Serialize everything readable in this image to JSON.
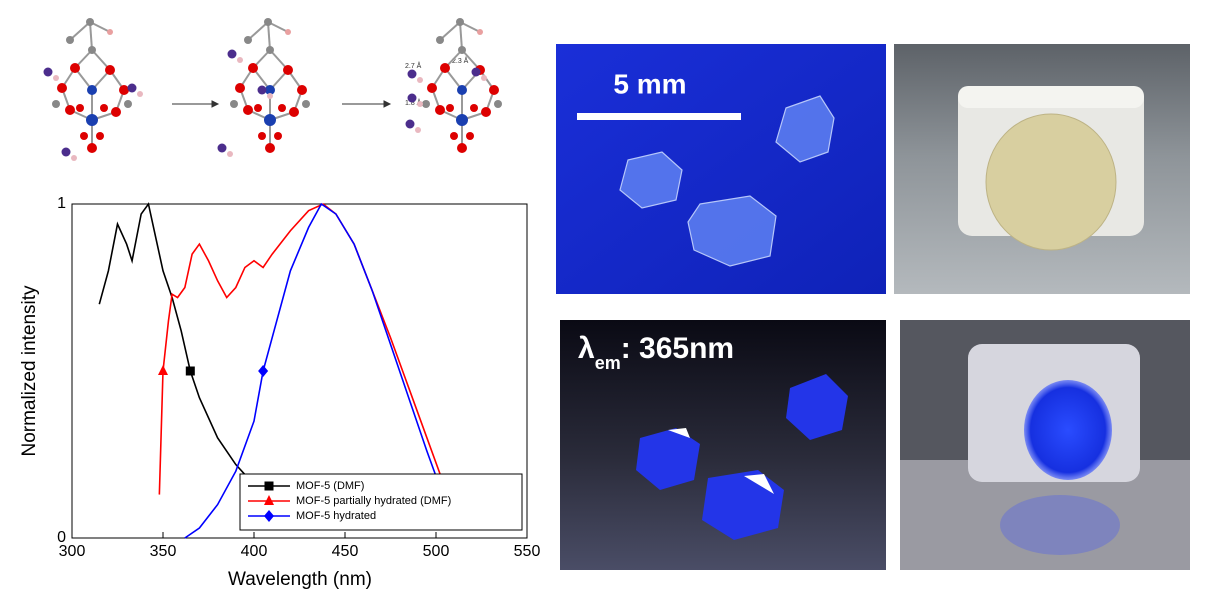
{
  "chart_data": {
    "type": "line",
    "x_label": "Wavelength (nm)",
    "y_label": "Normalized intensity",
    "xlim": [
      300,
      550
    ],
    "xticks": [
      300,
      350,
      400,
      450,
      500,
      550
    ],
    "ylim": [
      0,
      1
    ],
    "yticks": [
      0,
      1
    ],
    "legend": "lower right",
    "series": [
      {
        "name": "MOF-5 (DMF)",
        "color": "#000000",
        "marker": "square",
        "x": [
          315,
          320,
          325,
          330,
          333,
          338,
          342,
          346,
          350,
          355,
          360,
          365,
          370,
          380,
          390,
          400,
          410
        ],
        "values": [
          0.7,
          0.8,
          0.94,
          0.88,
          0.83,
          0.97,
          1.0,
          0.9,
          0.8,
          0.72,
          0.62,
          0.5,
          0.42,
          0.3,
          0.22,
          0.16,
          0.13
        ]
      },
      {
        "name": "MOF-5 partially hydrated (DMF)",
        "color": "#ff0000",
        "marker": "triangle",
        "x": [
          348,
          350,
          353,
          355,
          358,
          362,
          366,
          370,
          375,
          380,
          385,
          390,
          395,
          400,
          405,
          410,
          420,
          430,
          438,
          445,
          455,
          465,
          475,
          485,
          495,
          505,
          510
        ],
        "values": [
          0.13,
          0.5,
          0.65,
          0.73,
          0.72,
          0.75,
          0.85,
          0.88,
          0.83,
          0.77,
          0.72,
          0.75,
          0.81,
          0.83,
          0.81,
          0.85,
          0.92,
          0.98,
          1.0,
          0.97,
          0.88,
          0.74,
          0.6,
          0.45,
          0.3,
          0.15,
          0.11
        ]
      },
      {
        "name": "MOF-5 hydrated",
        "color": "#0000ff",
        "marker": "diamond",
        "x": [
          362,
          370,
          380,
          390,
          400,
          405,
          410,
          420,
          430,
          437,
          445,
          455,
          465,
          475,
          485,
          495,
          505
        ],
        "values": [
          0,
          0.03,
          0.1,
          0.2,
          0.35,
          0.5,
          0.6,
          0.8,
          0.93,
          1.0,
          0.97,
          0.88,
          0.74,
          0.58,
          0.42,
          0.26,
          0.11
        ]
      }
    ]
  },
  "structure_labels": [
    "2.7 Å",
    "2.3 Å",
    "1.8 Å"
  ],
  "photo_labels": {
    "scale_bar": "5 mm",
    "lambda": "λ",
    "subscript": "em",
    "excitation": ": 365nm"
  }
}
